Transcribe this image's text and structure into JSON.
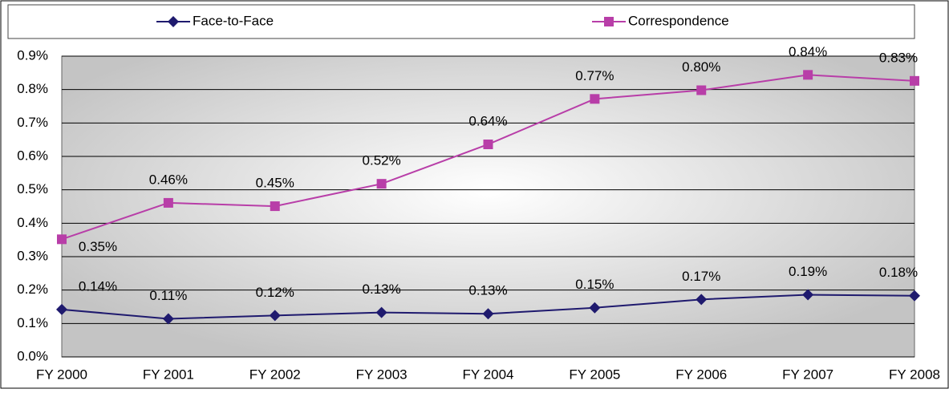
{
  "chart_data": {
    "type": "line",
    "categories": [
      "FY 2000",
      "FY 2001",
      "FY 2002",
      "FY 2003",
      "FY 2004",
      "FY 2005",
      "FY 2006",
      "FY 2007",
      "FY 2008"
    ],
    "series": [
      {
        "name": "Face-to-Face",
        "color": "#1f1a6e",
        "marker": "diamond",
        "values": [
          0.142,
          0.114,
          0.124,
          0.133,
          0.129,
          0.147,
          0.172,
          0.186,
          0.183
        ],
        "value_labels": [
          "0.14%",
          "0.11%",
          "0.12%",
          "0.13%",
          "0.13%",
          "0.15%",
          "0.17%",
          "0.19%",
          "0.18%"
        ]
      },
      {
        "name": "Correspondence",
        "color": "#b83ea8",
        "marker": "square",
        "values": [
          0.352,
          0.461,
          0.451,
          0.518,
          0.636,
          0.772,
          0.798,
          0.844,
          0.826
        ],
        "value_labels": [
          "0.35%",
          "0.46%",
          "0.45%",
          "0.52%",
          "0.64%",
          "0.77%",
          "0.80%",
          "0.84%",
          "0.83%"
        ]
      }
    ],
    "ylim": [
      0,
      0.9
    ],
    "yticks": [
      {
        "value": 0,
        "label": "0.0%"
      },
      {
        "value": 0.1,
        "label": "0.1%"
      },
      {
        "value": 0.2,
        "label": "0.2%"
      },
      {
        "value": 0.3,
        "label": "0.3%"
      },
      {
        "value": 0.4,
        "label": "0.4%"
      },
      {
        "value": 0.5,
        "label": "0.5%"
      },
      {
        "value": 0.6,
        "label": "0.6%"
      },
      {
        "value": 0.7,
        "label": "0.7%"
      },
      {
        "value": 0.8,
        "label": "0.8%"
      },
      {
        "value": 0.9,
        "label": "0.9%"
      }
    ],
    "grid": true,
    "legend": "top"
  }
}
